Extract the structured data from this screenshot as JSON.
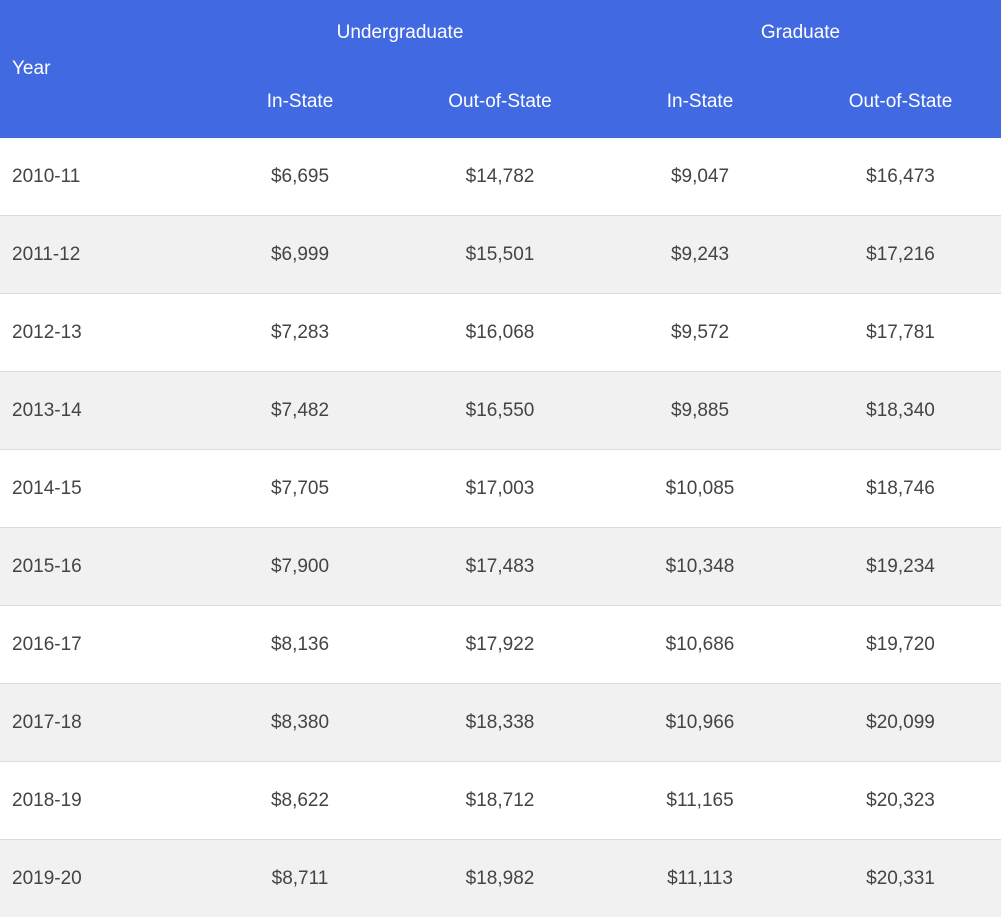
{
  "table": {
    "headers": {
      "year": "Year",
      "undergraduate": "Undergraduate",
      "graduate": "Graduate",
      "ug_in_state": "In-State",
      "ug_out_of_state": "Out-of-State",
      "grad_in_state": "In-State",
      "grad_out_of_state": "Out-of-State"
    },
    "rows": [
      {
        "year": "2010-11",
        "ug_in": "$6,695",
        "ug_out": "$14,782",
        "grad_in": "$9,047",
        "grad_out": "$16,473"
      },
      {
        "year": "2011-12",
        "ug_in": "$6,999",
        "ug_out": "$15,501",
        "grad_in": "$9,243",
        "grad_out": "$17,216"
      },
      {
        "year": "2012-13",
        "ug_in": "$7,283",
        "ug_out": "$16,068",
        "grad_in": "$9,572",
        "grad_out": "$17,781"
      },
      {
        "year": "2013-14",
        "ug_in": "$7,482",
        "ug_out": "$16,550",
        "grad_in": "$9,885",
        "grad_out": "$18,340"
      },
      {
        "year": "2014-15",
        "ug_in": "$7,705",
        "ug_out": "$17,003",
        "grad_in": "$10,085",
        "grad_out": "$18,746"
      },
      {
        "year": "2015-16",
        "ug_in": "$7,900",
        "ug_out": "$17,483",
        "grad_in": "$10,348",
        "grad_out": "$19,234"
      },
      {
        "year": "2016-17",
        "ug_in": "$8,136",
        "ug_out": "$17,922",
        "grad_in": "$10,686",
        "grad_out": "$19,720"
      },
      {
        "year": "2017-18",
        "ug_in": "$8,380",
        "ug_out": "$18,338",
        "grad_in": "$10,966",
        "grad_out": "$20,099"
      },
      {
        "year": "2018-19",
        "ug_in": "$8,622",
        "ug_out": "$18,712",
        "grad_in": "$11,165",
        "grad_out": "$20,323"
      },
      {
        "year": "2019-20",
        "ug_in": "$8,711",
        "ug_out": "$18,982",
        "grad_in": "$11,113",
        "grad_out": "$20,331"
      }
    ]
  },
  "colors": {
    "header_background": "#4169e1",
    "header_text": "#ffffff",
    "row_even_background": "#f1f1f1",
    "row_odd_background": "#ffffff",
    "cell_text": "#444444"
  }
}
